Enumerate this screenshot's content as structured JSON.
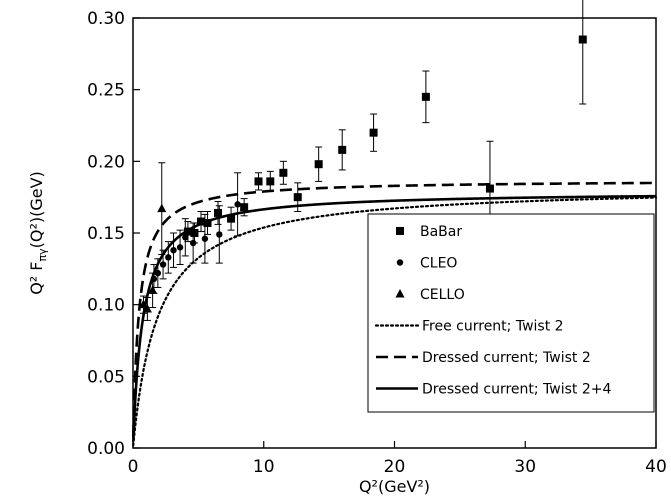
{
  "chart_data": {
    "type": "scatter",
    "xlabel": "Q²(GeV²)",
    "ylabel": "Q² F",
    "ylabel_sub": "πγ",
    "ylabel_tail": "(Q²)(GeV)",
    "xlim": [
      0,
      40
    ],
    "ylim": [
      0,
      0.3
    ],
    "x_ticks": [
      0,
      10,
      20,
      30,
      40
    ],
    "y_ticks": [
      0.0,
      0.05,
      0.1,
      0.15,
      0.2,
      0.25,
      0.3
    ],
    "x_tick_labels": [
      "0",
      "10",
      "20",
      "30",
      "40"
    ],
    "y_tick_labels": [
      "0.00",
      "0.05",
      "0.10",
      "0.15",
      "0.20",
      "0.25",
      "0.30"
    ],
    "grid": false,
    "legend_position": "bottom-right",
    "series": [
      {
        "name": "BaBar",
        "marker": "square",
        "points": [
          {
            "x": 4.2,
            "y": 0.151,
            "err": 0.007
          },
          {
            "x": 4.7,
            "y": 0.15,
            "err": 0.007
          },
          {
            "x": 5.2,
            "y": 0.158,
            "err": 0.007
          },
          {
            "x": 5.7,
            "y": 0.157,
            "err": 0.008
          },
          {
            "x": 6.5,
            "y": 0.164,
            "err": 0.008
          },
          {
            "x": 7.5,
            "y": 0.16,
            "err": 0.008
          },
          {
            "x": 8.5,
            "y": 0.168,
            "err": 0.006
          },
          {
            "x": 9.6,
            "y": 0.186,
            "err": 0.006
          },
          {
            "x": 10.5,
            "y": 0.186,
            "err": 0.007
          },
          {
            "x": 11.5,
            "y": 0.192,
            "err": 0.008
          },
          {
            "x": 12.6,
            "y": 0.175,
            "err": 0.01
          },
          {
            "x": 14.2,
            "y": 0.198,
            "err": 0.012
          },
          {
            "x": 16.0,
            "y": 0.208,
            "err": 0.014
          },
          {
            "x": 18.4,
            "y": 0.22,
            "err": 0.013
          },
          {
            "x": 22.4,
            "y": 0.245,
            "err": 0.018
          },
          {
            "x": 27.3,
            "y": 0.181,
            "err": 0.033
          },
          {
            "x": 34.4,
            "y": 0.285,
            "err": 0.045
          }
        ]
      },
      {
        "name": "CLEO",
        "marker": "circle",
        "points": [
          {
            "x": 1.6,
            "y": 0.118,
            "err": 0.01
          },
          {
            "x": 1.9,
            "y": 0.122,
            "err": 0.01
          },
          {
            "x": 2.3,
            "y": 0.128,
            "err": 0.01
          },
          {
            "x": 2.7,
            "y": 0.133,
            "err": 0.011
          },
          {
            "x": 3.1,
            "y": 0.138,
            "err": 0.012
          },
          {
            "x": 3.6,
            "y": 0.14,
            "err": 0.012
          },
          {
            "x": 4.0,
            "y": 0.147,
            "err": 0.013
          },
          {
            "x": 4.6,
            "y": 0.143,
            "err": 0.014
          },
          {
            "x": 5.5,
            "y": 0.146,
            "err": 0.017
          },
          {
            "x": 6.6,
            "y": 0.149,
            "err": 0.02
          },
          {
            "x": 8.0,
            "y": 0.17,
            "err": 0.022
          }
        ]
      },
      {
        "name": "CELLO",
        "marker": "triangle",
        "points": [
          {
            "x": 0.8,
            "y": 0.1,
            "err": 0.006
          },
          {
            "x": 1.1,
            "y": 0.097,
            "err": 0.008
          },
          {
            "x": 1.5,
            "y": 0.11,
            "err": 0.012
          },
          {
            "x": 2.2,
            "y": 0.167,
            "err": 0.032
          }
        ]
      }
    ],
    "curves": [
      {
        "name": "Free current; Twist 2",
        "style": "dotted",
        "asymptote": 0.183,
        "m2": 1.9
      },
      {
        "name": "Dressed current; Twist 2",
        "style": "dashed",
        "asymptote": 0.187,
        "m2": 0.45
      },
      {
        "name": "Dressed current; Twist 2+4",
        "style": "solid",
        "asymptote": 0.179,
        "m2": 0.75
      }
    ]
  }
}
